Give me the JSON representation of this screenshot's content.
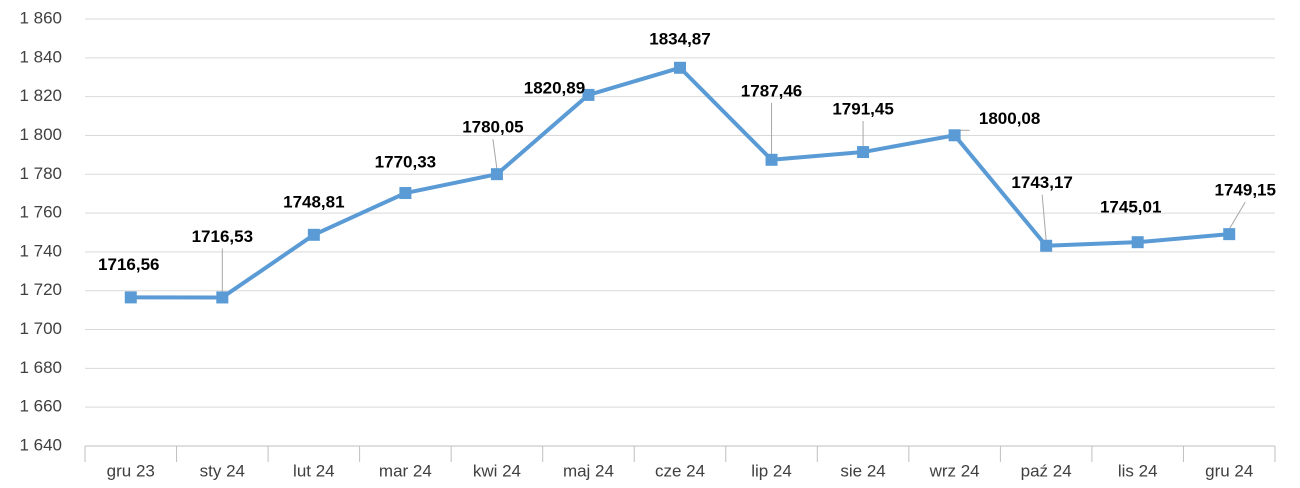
{
  "chart_data": {
    "type": "line",
    "categories": [
      "gru 23",
      "sty 24",
      "lut 24",
      "mar 24",
      "kwi 24",
      "maj 24",
      "cze 24",
      "lip 24",
      "sie 24",
      "wrz 24",
      "paź 24",
      "lis 24",
      "gru 24"
    ],
    "series": [
      {
        "color": "#5b9bd5",
        "values": [
          1716.56,
          1716.53,
          1748.81,
          1770.33,
          1780.05,
          1820.89,
          1834.87,
          1787.46,
          1791.45,
          1800.08,
          1743.17,
          1745.01,
          1749.15
        ],
        "value_labels": [
          "1716,56",
          "1716,53",
          "1748,81",
          "1770,33",
          "1780,05",
          "1820,89",
          "1834,87",
          "1787,46",
          "1791,45",
          "1800,08",
          "1743,17",
          "1745,01",
          "1749,15"
        ]
      }
    ],
    "ylim": [
      1640,
      1860
    ],
    "yticks": [
      {
        "value": 1640,
        "label": "1 640"
      },
      {
        "value": 1660,
        "label": "1 660"
      },
      {
        "value": 1680,
        "label": "1 680"
      },
      {
        "value": 1700,
        "label": "1 700"
      },
      {
        "value": 1720,
        "label": "1 720"
      },
      {
        "value": 1740,
        "label": "1 740"
      },
      {
        "value": 1760,
        "label": "1 760"
      },
      {
        "value": 1780,
        "label": "1 780"
      },
      {
        "value": 1800,
        "label": "1 800"
      },
      {
        "value": 1820,
        "label": "1 820"
      },
      {
        "value": 1840,
        "label": "1 840"
      },
      {
        "value": 1860,
        "label": "1 860"
      }
    ],
    "grid": true
  }
}
